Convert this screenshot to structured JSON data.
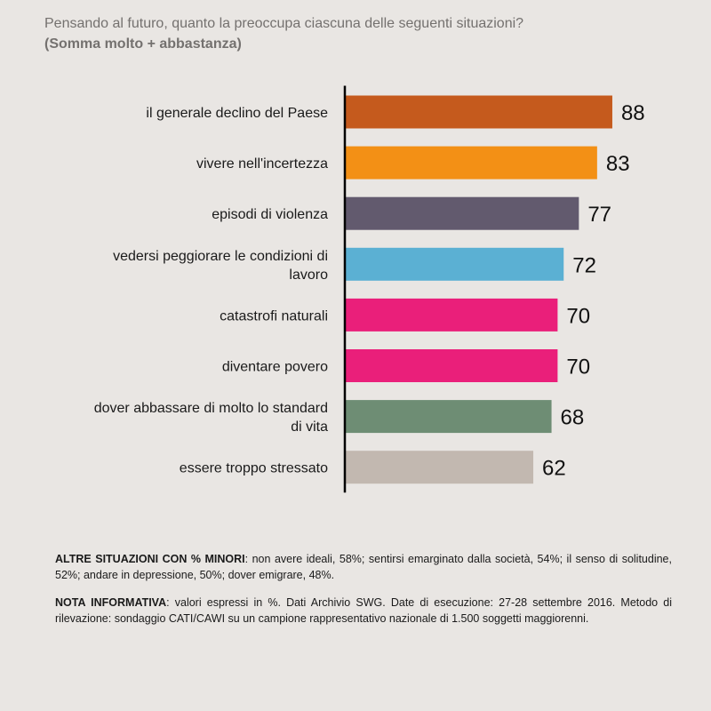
{
  "title": "Pensando al futuro, quanto la preoccupa ciascuna delle seguenti situazioni?",
  "subtitle": "(Somma molto + abbastanza)",
  "chart_data": {
    "type": "bar",
    "orientation": "horizontal",
    "categories": [
      [
        "il generale declino del Paese"
      ],
      [
        "vivere nell'incertezza"
      ],
      [
        "episodi di violenza"
      ],
      [
        "vedersi peggiorare le condizioni di",
        "lavoro"
      ],
      [
        "catastrofi naturali"
      ],
      [
        "diventare povero"
      ],
      [
        "dover abbassare di molto lo standard",
        "di vita"
      ],
      [
        "essere troppo stressato"
      ]
    ],
    "values": [
      88,
      83,
      77,
      72,
      70,
      70,
      68,
      62
    ],
    "colors": [
      "#c55a1d",
      "#f39015",
      "#625a6e",
      "#5bb0d3",
      "#ea1f7a",
      "#ea1f7a",
      "#6e8d74",
      "#c2b8b0"
    ],
    "xlim": [
      0,
      100
    ],
    "grid": false,
    "legend": "none"
  },
  "notes": {
    "other_label": "ALTRE SITUAZIONI CON % MINORI",
    "other_text": ": non avere ideali, 58%; sentirsi emarginato dalla società, 54%; il senso di solitudine, 52%; andare in depressione, 50%; dover emigrare, 48%.",
    "info_label": "NOTA INFORMATIVA",
    "info_text": ": valori espressi in %. Dati Archivio SWG. Date di esecuzione: 27-28 settembre 2016. Metodo di rilevazione: sondaggio CATI/CAWI su un campione rappresentativo nazionale di 1.500 soggetti maggiorenni."
  }
}
